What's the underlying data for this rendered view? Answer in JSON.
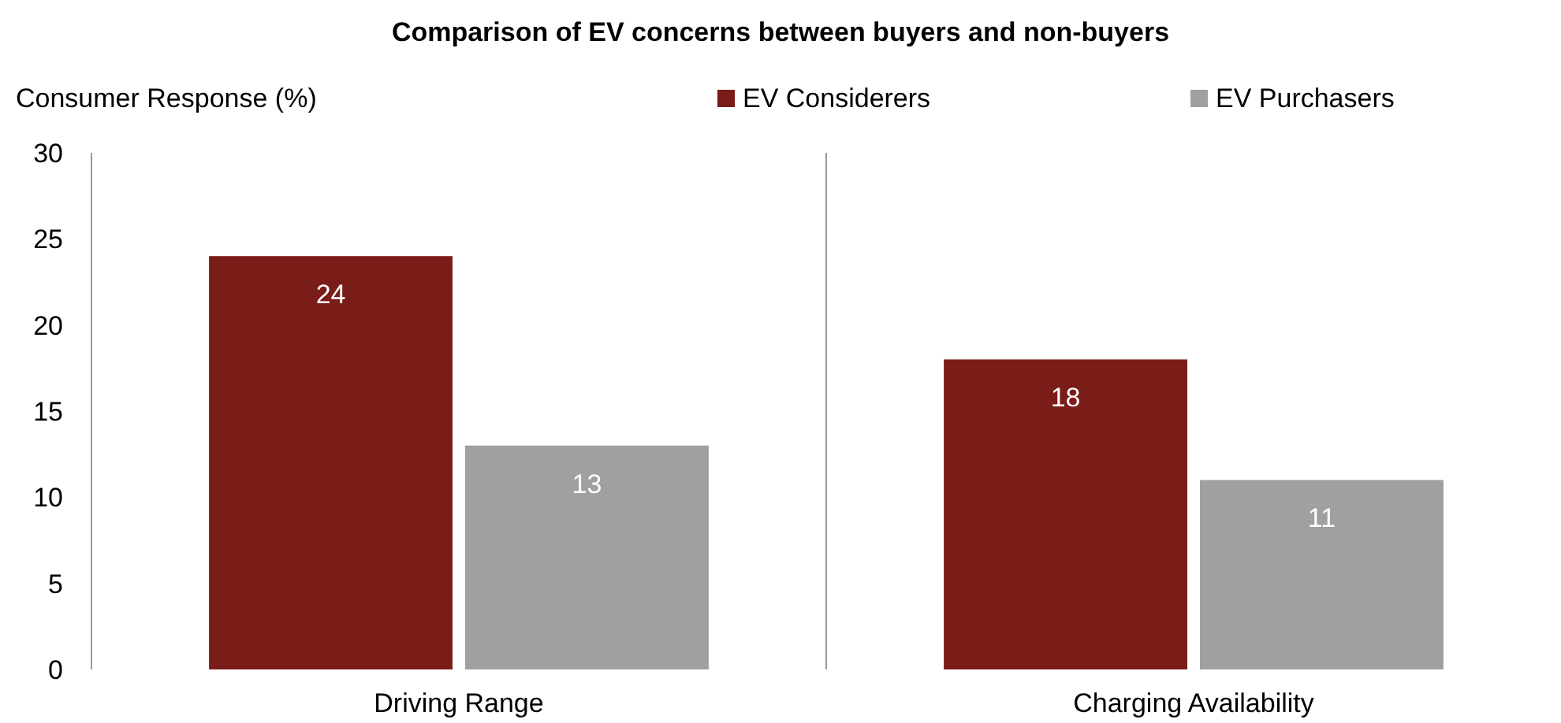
{
  "chart_data": {
    "type": "bar",
    "title": "Comparison of EV concerns between buyers and non-buyers",
    "ylabel": "Consumer Response (%)",
    "categories": [
      "Driving Range",
      "Charging Availability"
    ],
    "series": [
      {
        "name": "EV Considerers",
        "color": "#7a1c18",
        "values": [
          24,
          18
        ]
      },
      {
        "name": "EV Purchasers",
        "color": "#a09fa1",
        "values": [
          13,
          11
        ]
      }
    ],
    "ylim": [
      0,
      30
    ],
    "yticks": [
      0,
      5,
      10,
      15,
      20,
      25,
      30
    ],
    "data_labels": true,
    "legend": "top right",
    "grid": false
  }
}
